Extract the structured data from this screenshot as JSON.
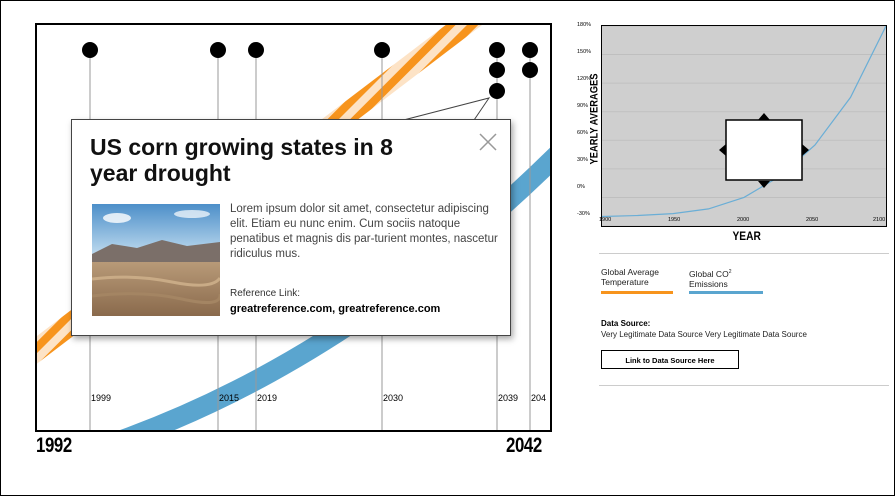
{
  "timeline": {
    "start_year": "1992",
    "end_year": "2042",
    "markers": [
      "1999",
      "2015",
      "2019",
      "2030",
      "2039",
      "204"
    ]
  },
  "popup": {
    "title": "US corn growing states in 8 year drought",
    "body": "Lorem ipsum dolor sit amet, consectetur adipiscing elit. Etiam eu nunc enim. Cum sociis natoque penatibus et magnis dis par-turient montes, nascetur ridiculus mus.",
    "reference_label": "Reference Link:",
    "reference_link_1": "greatreference.com",
    "reference_separator": ", ",
    "reference_link_2": "greatreference.com"
  },
  "chart": {
    "ylabel": "YEARLY AVERAGES",
    "xlabel": "YEAR",
    "yticks": [
      "180%",
      "150%",
      "120%",
      "90%",
      "60%",
      "30%",
      "0%",
      "-30%"
    ],
    "xticks": [
      "1900",
      "1950",
      "2000",
      "2050",
      "2100"
    ]
  },
  "chart_data": {
    "type": "line",
    "xlabel": "YEAR",
    "ylabel": "YEARLY AVERAGES",
    "xlim": [
      1900,
      2100
    ],
    "ylim": [
      -30,
      180
    ],
    "series": [
      {
        "name": "Global CO² Emissions",
        "x": [
          1900,
          1925,
          1950,
          1975,
          2000,
          2025,
          2050,
          2075,
          2100
        ],
        "y": [
          -20,
          -19,
          -17,
          -12,
          0,
          22,
          55,
          105,
          180
        ]
      }
    ]
  },
  "legend": {
    "temperature": "Global Average Temperature",
    "emissions_line1": "Global CO",
    "emissions_sup": "2",
    "emissions_line2": "Emissions"
  },
  "datasource": {
    "label": "Data Source:",
    "text": "Very Legitimate Data Source Very Legitimate Data Source",
    "button": "Link to Data Source Here"
  },
  "colors": {
    "orange": "#f7941d",
    "blue": "#5aa5cf",
    "line": "#6aaed6",
    "plot_bg": "#cfcfcf"
  }
}
